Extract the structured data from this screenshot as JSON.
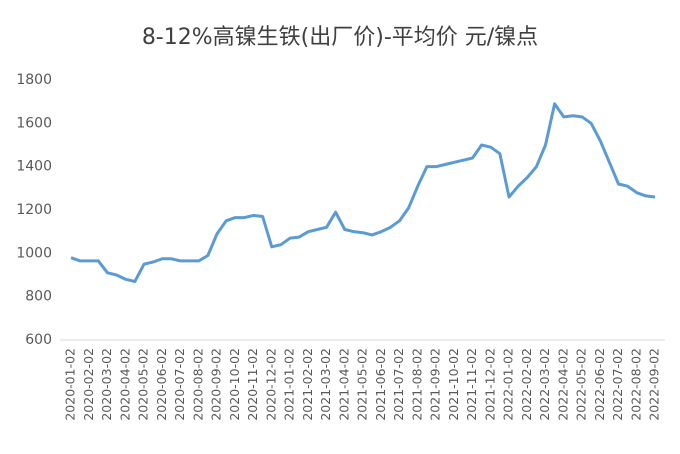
{
  "chart_data": {
    "type": "line",
    "title": "8-12%高镍生铁(出厂价)-平均价 元/镍点",
    "categories": [
      "2020-01-02",
      null,
      "2020-02-02",
      null,
      "2020-03-02",
      null,
      "2020-04-02",
      null,
      "2020-05-02",
      null,
      "2020-06-02",
      null,
      "2020-07-02",
      null,
      "2020-08-02",
      null,
      "2020-09-02",
      null,
      "2020-10-02",
      null,
      "2020-11-02",
      null,
      "2020-12-02",
      null,
      "2021-01-02",
      null,
      "2021-02-02",
      null,
      "2021-03-02",
      null,
      "2021-04-02",
      null,
      "2021-05-02",
      null,
      "2021-06-02",
      null,
      "2021-07-02",
      null,
      "2021-08-02",
      null,
      "2021-09-02",
      null,
      "2021-10-02",
      null,
      "2021-11-02",
      null,
      "2021-12-02",
      null,
      "2022-01-02",
      null,
      "2022-02-02",
      null,
      "2022-03-02",
      null,
      "2022-04-02",
      null,
      "2022-05-02",
      null,
      "2022-06-02",
      null,
      "2022-07-02",
      null,
      "2022-08-02",
      null,
      "2022-09-02"
    ],
    "series": [
      {
        "name": "8-12%高镍生铁(出厂价)-平均价",
        "color": "#5b9bd5",
        "values": [
          980,
          965,
          965,
          965,
          910,
          900,
          880,
          870,
          950,
          960,
          975,
          975,
          965,
          965,
          965,
          990,
          1090,
          1150,
          1165,
          1165,
          1175,
          1170,
          1030,
          1040,
          1070,
          1075,
          1100,
          1110,
          1120,
          1190,
          1110,
          1100,
          1095,
          1085,
          1100,
          1120,
          1150,
          1210,
          1310,
          1400,
          1400,
          1410,
          1420,
          1430,
          1440,
          1500,
          1490,
          1460,
          1260,
          1310,
          1350,
          1400,
          1500,
          1690,
          1630,
          1635,
          1630,
          1600,
          1520,
          1420,
          1320,
          1310,
          1280,
          1265,
          1260
        ]
      }
    ],
    "ylim": [
      600,
      1800
    ],
    "yticks": [
      600,
      800,
      1000,
      1200,
      1400,
      1600,
      1800
    ],
    "grid": false
  }
}
